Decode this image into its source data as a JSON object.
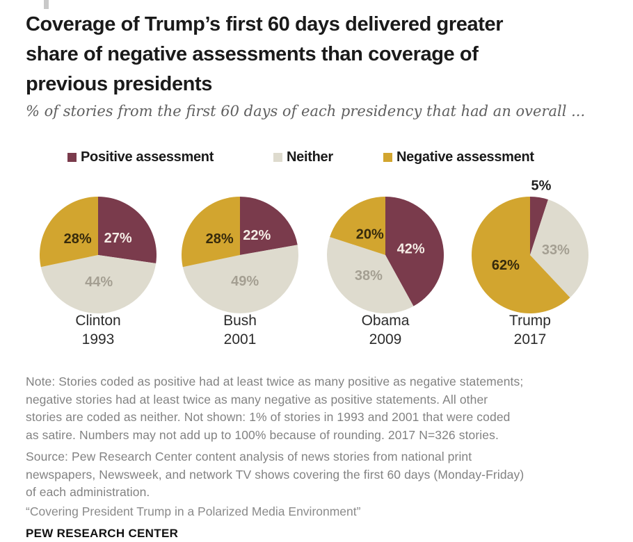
{
  "header": {
    "title": "Coverage of Trump’s first 60 days delivered greater\nshare of negative assessments than coverage of\nprevious presidents",
    "subtitle": "% of stories from the first 60 days of each presidency that had an overall ..."
  },
  "chart_data": {
    "type": "pie",
    "unit": "%",
    "legend_position": "top",
    "categories": [
      {
        "key": "positive",
        "label": "Positive assessment",
        "color": "#7a3b4c"
      },
      {
        "key": "neither",
        "label": "Neither",
        "color": "#dedbce"
      },
      {
        "key": "negative",
        "label": "Negative assessment",
        "color": "#d2a52f"
      }
    ],
    "pies": [
      {
        "label": "Clinton",
        "year": "1993",
        "values": {
          "positive": 27,
          "neither": 44,
          "negative": 28
        }
      },
      {
        "label": "Bush",
        "year": "2001",
        "values": {
          "positive": 22,
          "neither": 49,
          "negative": 28
        }
      },
      {
        "label": "Obama",
        "year": "2009",
        "values": {
          "positive": 42,
          "neither": 38,
          "negative": 20
        }
      },
      {
        "label": "Trump",
        "year": "2017",
        "values": {
          "positive": 5,
          "neither": 33,
          "negative": 62
        },
        "outside_label": "positive"
      }
    ],
    "slice_label_colors": {
      "positive": "#f5ede6",
      "neither": "#a49f92",
      "negative": "#362a0c",
      "outside": "#1f1f1f"
    }
  },
  "notes": {
    "note": "Note: Stories coded as positive had at least twice as many positive as negative statements;\nnegative stories had at least twice as many negative as positive statements. All other\nstories are coded as neither. Not shown: 1% of stories in 1993 and 2001 that were coded\nas satire. Numbers may not add up to 100% because of rounding. 2017 N=326 stories.",
    "source": "Source: Pew Research Center content analysis of news stories from national print\nnewspapers, Newsweek, and network TV shows covering the first 60 days (Monday-Friday)\nof each administration.",
    "quote": "“Covering President Trump in a Polarized Media Environment”"
  },
  "footer": {
    "brand": "PEW RESEARCH CENTER"
  }
}
